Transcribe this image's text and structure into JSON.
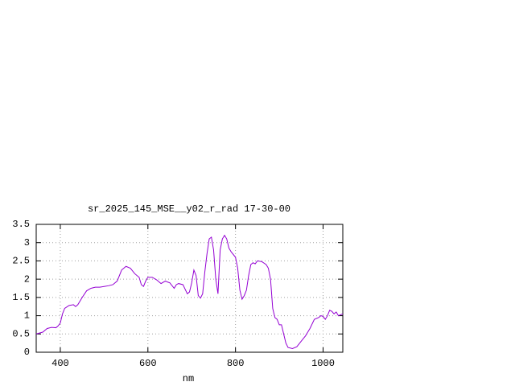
{
  "chart_data": {
    "type": "line",
    "title": "sr_2025_145_MSE__y02_r_rad 17-30-00",
    "x_label": "nm",
    "x": [
      345,
      360,
      370,
      380,
      390,
      395,
      400,
      405,
      410,
      420,
      430,
      435,
      440,
      450,
      460,
      470,
      480,
      490,
      500,
      510,
      520,
      530,
      540,
      550,
      560,
      570,
      580,
      585,
      590,
      595,
      600,
      610,
      620,
      630,
      640,
      645,
      650,
      660,
      665,
      670,
      680,
      690,
      695,
      700,
      705,
      710,
      715,
      720,
      725,
      730,
      735,
      740,
      745,
      750,
      755,
      760,
      765,
      770,
      775,
      780,
      785,
      790,
      800,
      805,
      810,
      815,
      820,
      825,
      830,
      835,
      840,
      845,
      850,
      860,
      870,
      875,
      880,
      885,
      890,
      895,
      900,
      905,
      910,
      915,
      920,
      930,
      940,
      950,
      960,
      970,
      980,
      990,
      995,
      1000,
      1005,
      1010,
      1015,
      1020,
      1025,
      1030,
      1035,
      1045
    ],
    "series": [
      {
        "name": "sr_2025_145_MSE__y02_r_rad 17-30-00",
        "color": "#9400d3",
        "values": [
          0.5,
          0.55,
          0.65,
          0.68,
          0.67,
          0.72,
          0.8,
          1.05,
          1.2,
          1.28,
          1.3,
          1.25,
          1.3,
          1.5,
          1.68,
          1.75,
          1.78,
          1.78,
          1.8,
          1.82,
          1.85,
          1.95,
          2.25,
          2.35,
          2.3,
          2.15,
          2.05,
          1.85,
          1.8,
          1.95,
          2.05,
          2.05,
          1.98,
          1.88,
          1.95,
          1.92,
          1.9,
          1.75,
          1.85,
          1.88,
          1.85,
          1.6,
          1.65,
          1.9,
          2.25,
          2.1,
          1.55,
          1.48,
          1.6,
          2.2,
          2.7,
          3.1,
          3.15,
          2.8,
          2.0,
          1.6,
          2.8,
          3.1,
          3.2,
          3.1,
          2.85,
          2.75,
          2.6,
          2.3,
          1.7,
          1.45,
          1.55,
          1.7,
          2.1,
          2.4,
          2.45,
          2.42,
          2.5,
          2.48,
          2.4,
          2.3,
          2.0,
          1.2,
          0.95,
          0.9,
          0.75,
          0.75,
          0.5,
          0.25,
          0.13,
          0.1,
          0.15,
          0.3,
          0.45,
          0.65,
          0.9,
          0.95,
          1.0,
          0.98,
          0.9,
          1.0,
          1.15,
          1.12,
          1.05,
          1.1,
          1.0,
          1.05
        ]
      }
    ],
    "xlim": [
      345,
      1045
    ],
    "xticks": [
      400,
      600,
      800,
      1000
    ],
    "ylim": [
      0,
      3.5
    ],
    "yticks": [
      0,
      0.5,
      1,
      1.5,
      2,
      2.5,
      3,
      3.5
    ],
    "grid": true
  }
}
